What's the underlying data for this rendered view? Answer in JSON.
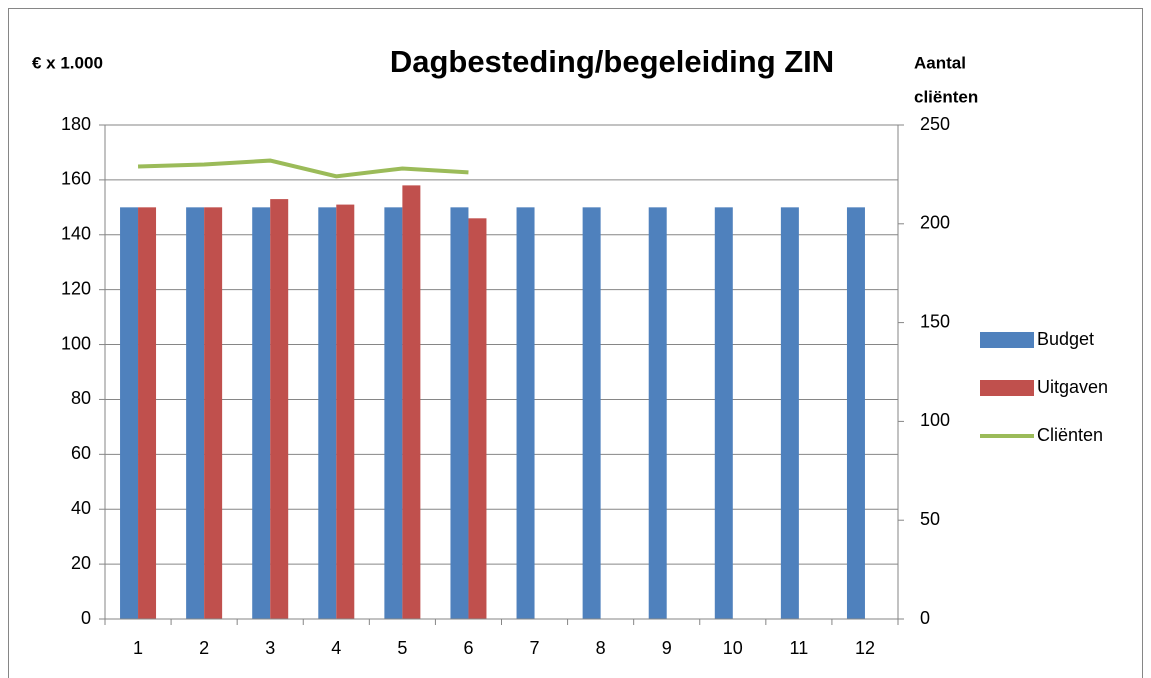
{
  "chart_data": {
    "type": "bar_line",
    "title": "Dagbesteding/begeleiding ZIN",
    "y_label": "€ x 1.000",
    "y2_label": [
      "Aantal",
      "cliënten"
    ],
    "categories": [
      "1",
      "2",
      "3",
      "4",
      "5",
      "6",
      "7",
      "8",
      "9",
      "10",
      "11",
      "12"
    ],
    "series": [
      {
        "name": "Budget",
        "type": "bar",
        "color": "#4f81bd",
        "values": [
          150,
          150,
          150,
          150,
          150,
          150,
          150,
          150,
          150,
          150,
          150,
          150
        ]
      },
      {
        "name": "Uitgaven",
        "type": "bar",
        "color": "#c0504d",
        "values": [
          150,
          150,
          153,
          151,
          158,
          146,
          null,
          null,
          null,
          null,
          null,
          null
        ]
      },
      {
        "name": "Cliënten",
        "type": "line",
        "axis": "y2",
        "color": "#9bbb59",
        "values": [
          229,
          230,
          232,
          224,
          228,
          226,
          null,
          null,
          null,
          null,
          null,
          null
        ]
      }
    ],
    "ylim": [
      0,
      180
    ],
    "yticks": [
      0,
      20,
      40,
      60,
      80,
      100,
      120,
      140,
      160,
      180
    ],
    "y2lim": [
      0,
      250
    ],
    "y2ticks": [
      0,
      50,
      100,
      150,
      200,
      250
    ],
    "grid": true,
    "legend": "right"
  }
}
